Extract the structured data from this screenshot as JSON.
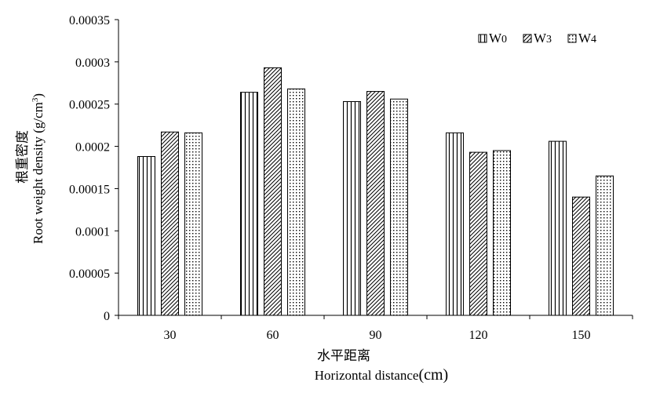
{
  "chart_data": {
    "type": "bar",
    "categories": [
      "30",
      "60",
      "90",
      "120",
      "150"
    ],
    "series": [
      {
        "name": "W0",
        "name_main": "W",
        "name_sub": "0",
        "pattern": "vertical-lines",
        "values": [
          0.000188,
          0.000264,
          0.000253,
          0.000216,
          0.000206
        ]
      },
      {
        "name": "W3",
        "name_main": "W",
        "name_sub": "3",
        "pattern": "diagonal-lines",
        "values": [
          0.000217,
          0.000293,
          0.000265,
          0.000193,
          0.00014
        ]
      },
      {
        "name": "W4",
        "name_main": "W",
        "name_sub": "4",
        "pattern": "dots",
        "values": [
          0.000216,
          0.000268,
          0.000256,
          0.000195,
          0.000165
        ]
      }
    ],
    "yticks": [
      "0",
      "0.00005",
      "0.0001",
      "0.00015",
      "0.0002",
      "0.00025",
      "0.0003",
      "0.00035"
    ],
    "ylim": [
      0,
      0.00035
    ],
    "ylabel_cn": "根重密度",
    "ylabel_en": "Root weight density (g/cm",
    "ylabel_sup": "3",
    "ylabel_end": ")",
    "xlabel_cn": "水平距离",
    "xlabel_en": "Horizontal distance",
    "xlabel_unit": "(cm)",
    "legend_position": "top-right",
    "grid": false
  }
}
